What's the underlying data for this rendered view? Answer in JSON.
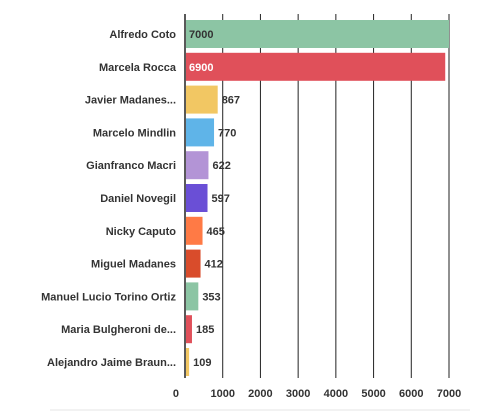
{
  "chart_data": {
    "type": "bar",
    "orientation": "horizontal",
    "categories": [
      "Alfredo Coto",
      "Marcela Rocca",
      "Javier Madanes...",
      "Marcelo Mindlin",
      "Gianfranco Macri",
      "Daniel Novegil",
      "Nicky Caputo",
      "Miguel Madanes",
      "Manuel Lucio Torino Ortiz",
      "Maria Bulgheroni de...",
      "Alejandro Jaime Braun..."
    ],
    "values": [
      7000,
      6900,
      867,
      770,
      622,
      597,
      465,
      412,
      353,
      185,
      109
    ],
    "value_labels": [
      "7000",
      "6900",
      "867",
      "770",
      "622",
      "597",
      "465",
      "412",
      "353",
      "185",
      "109"
    ],
    "colors": [
      "#8cc5a4",
      "#e0505a",
      "#f2c763",
      "#5fb4e8",
      "#b394d6",
      "#6a4fd6",
      "#ff7a45",
      "#d94c2b",
      "#8cc5a4",
      "#e0505a",
      "#f2c763"
    ],
    "xlim": [
      0,
      7000
    ],
    "xticks": [
      0,
      1000,
      2000,
      3000,
      4000,
      5000,
      6000,
      7000
    ],
    "xtick_labels": [
      "0",
      "1000",
      "2000",
      "3000",
      "4000",
      "5000",
      "6000",
      "7000"
    ],
    "grid": true,
    "title": "",
    "xlabel": "",
    "ylabel": ""
  }
}
